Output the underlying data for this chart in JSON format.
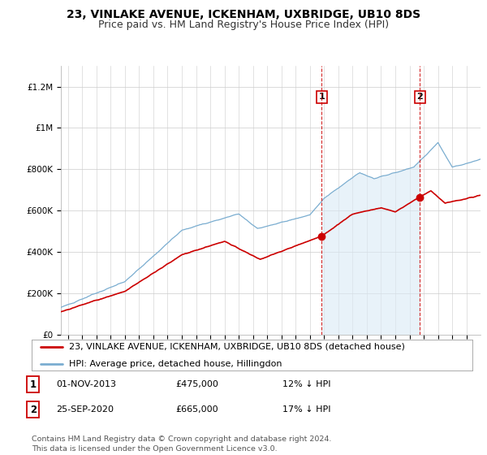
{
  "title": "23, VINLAKE AVENUE, ICKENHAM, UXBRIDGE, UB10 8DS",
  "subtitle": "Price paid vs. HM Land Registry's House Price Index (HPI)",
  "ylabel_ticks": [
    "£0",
    "£200K",
    "£400K",
    "£600K",
    "£800K",
    "£1M",
    "£1.2M"
  ],
  "ytick_values": [
    0,
    200000,
    400000,
    600000,
    800000,
    1000000,
    1200000
  ],
  "ylim": [
    0,
    1300000
  ],
  "xlim_start": 1995.5,
  "xlim_end": 2025.0,
  "sale1_date": 2013.83,
  "sale1_price": 475000,
  "sale1_label": "1",
  "sale2_date": 2020.73,
  "sale2_price": 665000,
  "sale2_label": "2",
  "line_color_property": "#cc0000",
  "line_color_hpi": "#7aadd0",
  "fill_color_hpi": "#daeaf5",
  "vline_color": "#cc0000",
  "grid_color": "#cccccc",
  "background_color": "#ffffff",
  "legend_label_property": "23, VINLAKE AVENUE, ICKENHAM, UXBRIDGE, UB10 8DS (detached house)",
  "legend_label_hpi": "HPI: Average price, detached house, Hillingdon",
  "annotation1_date": "01-NOV-2013",
  "annotation1_price": "£475,000",
  "annotation1_pct": "12% ↓ HPI",
  "annotation2_date": "25-SEP-2020",
  "annotation2_price": "£665,000",
  "annotation2_pct": "17% ↓ HPI",
  "footer": "Contains HM Land Registry data © Crown copyright and database right 2024.\nThis data is licensed under the Open Government Licence v3.0.",
  "title_fontsize": 10,
  "subtitle_fontsize": 9,
  "tick_fontsize": 7.5,
  "legend_fontsize": 8,
  "annotation_fontsize": 8
}
